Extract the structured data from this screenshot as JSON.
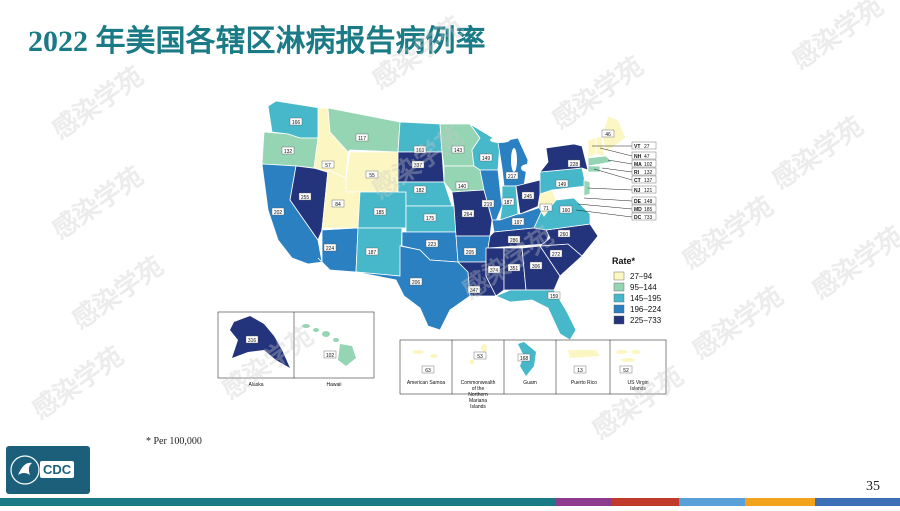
{
  "title": "2022 年美国各辖区淋病报告病例率",
  "footnote": "* Per 100,000",
  "page_number": "35",
  "logo_text": "CDC",
  "watermark": "感染学苑",
  "legend": {
    "title": "Rate*",
    "items": [
      {
        "label": "27–94",
        "color": "#fbf6c2"
      },
      {
        "label": "95–144",
        "color": "#96d5b4"
      },
      {
        "label": "145–195",
        "color": "#47b8c9"
      },
      {
        "label": "196–224",
        "color": "#2b80c2"
      },
      {
        "label": "225–733",
        "color": "#23347c"
      }
    ]
  },
  "callouts": [
    {
      "state": "VT",
      "value": "27"
    },
    {
      "state": "NH",
      "value": "47"
    },
    {
      "state": "MA",
      "value": "102"
    },
    {
      "state": "RI",
      "value": "132"
    },
    {
      "state": "CT",
      "value": "137"
    },
    {
      "state": "NJ",
      "value": "121"
    },
    {
      "state": "DE",
      "value": "148"
    },
    {
      "state": "MD",
      "value": "185"
    },
    {
      "state": "DC",
      "value": "733"
    }
  ],
  "territories": [
    {
      "name": "Alaska",
      "value": "316"
    },
    {
      "name": "Hawaii",
      "value": "102"
    },
    {
      "name": "American Samoa",
      "value": "63"
    },
    {
      "name": "Commonwealth of the Northern Mariana Islands",
      "value": "53"
    },
    {
      "name": "Guam",
      "value": "168"
    },
    {
      "name": "Puerto Rico",
      "value": "13"
    },
    {
      "name": "US Virgin Islands",
      "value": "52"
    }
  ],
  "states": [
    {
      "name": "WA",
      "value": "166"
    },
    {
      "name": "OR",
      "value": "132"
    },
    {
      "name": "CA",
      "value": "202"
    },
    {
      "name": "NV",
      "value": "255"
    },
    {
      "name": "ID",
      "value": "57"
    },
    {
      "name": "MT",
      "value": "117"
    },
    {
      "name": "WY",
      "value": "55"
    },
    {
      "name": "UT",
      "value": "84"
    },
    {
      "name": "AZ",
      "value": "224"
    },
    {
      "name": "CO",
      "value": "185"
    },
    {
      "name": "NM",
      "value": "187"
    },
    {
      "name": "ND",
      "value": "163"
    },
    {
      "name": "SD",
      "value": "337"
    },
    {
      "name": "NE",
      "value": "182"
    },
    {
      "name": "KS",
      "value": "175"
    },
    {
      "name": "OK",
      "value": "223"
    },
    {
      "name": "TX",
      "value": "206"
    },
    {
      "name": "MN",
      "value": "143"
    },
    {
      "name": "IA",
      "value": "140"
    },
    {
      "name": "MO",
      "value": "264"
    },
    {
      "name": "AR",
      "value": "205"
    },
    {
      "name": "LA",
      "value": "347"
    },
    {
      "name": "WI",
      "value": "149"
    },
    {
      "name": "IL",
      "value": "219"
    },
    {
      "name": "MI",
      "value": "217"
    },
    {
      "name": "IN",
      "value": "187"
    },
    {
      "name": "OH",
      "value": "245"
    },
    {
      "name": "KY",
      "value": "197"
    },
    {
      "name": "TN",
      "value": "286"
    },
    {
      "name": "MS",
      "value": "374"
    },
    {
      "name": "AL",
      "value": "351"
    },
    {
      "name": "GA",
      "value": "306"
    },
    {
      "name": "FL",
      "value": "159"
    },
    {
      "name": "SC",
      "value": "272"
    },
    {
      "name": "NC",
      "value": "260"
    },
    {
      "name": "VA",
      "value": "160"
    },
    {
      "name": "WV",
      "value": "71"
    },
    {
      "name": "PA",
      "value": "149"
    },
    {
      "name": "NY",
      "value": "228"
    },
    {
      "name": "ME",
      "value": "46"
    }
  ],
  "bottom_bar_colors": [
    "#1a7b86",
    "#8e3a8e",
    "#c03b2b",
    "#5aa0d8",
    "#f2a21d",
    "#3c6fb6"
  ]
}
